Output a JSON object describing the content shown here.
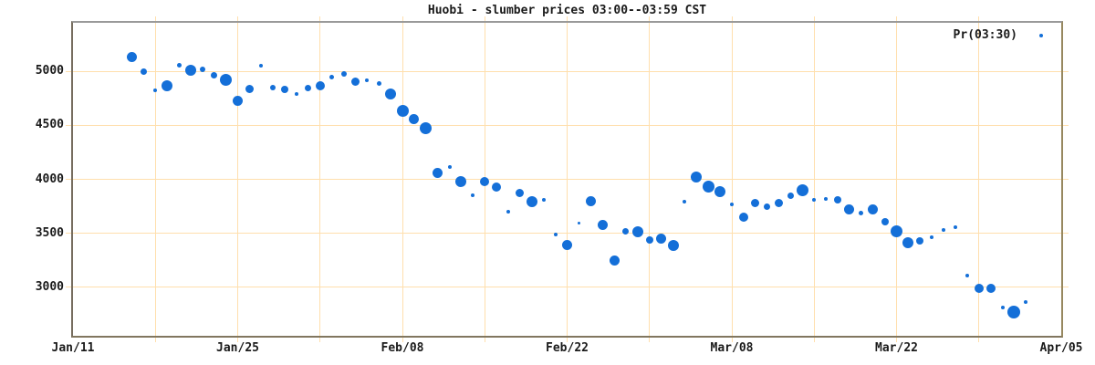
{
  "title": "Huobi - slumber prices 03:00--03:59 CST",
  "colors": {
    "point_blue": "#146fd8",
    "grid_wheat": "#ffdfad",
    "frame_gray": "#9a9a9a",
    "frame_tan": "#8a7d63",
    "text": "#1a1a1a",
    "background": "#ffffff"
  },
  "chart_data": {
    "type": "scatter",
    "title": "Huobi - slumber prices 03:00--03:59 CST",
    "series_name": "Pr(03:30)",
    "legend_position": "top-right",
    "grid": true,
    "x_axis": {
      "total_days": 84,
      "minor_tick_interval_days": 7,
      "major_ticks": [
        {
          "day": 0,
          "label": "Jan/11"
        },
        {
          "day": 14,
          "label": "Jan/25"
        },
        {
          "day": 28,
          "label": "Feb/08"
        },
        {
          "day": 42,
          "label": "Feb/22"
        },
        {
          "day": 56,
          "label": "Mar/08"
        },
        {
          "day": 70,
          "label": "Mar/22"
        },
        {
          "day": 84,
          "label": "Apr/05"
        }
      ]
    },
    "y_axis": {
      "ticks": [
        3000,
        3500,
        4000,
        4500,
        5000
      ],
      "range": [
        2550,
        5450
      ]
    },
    "point_columns": [
      "date",
      "day_index",
      "price",
      "marker_px"
    ],
    "points": [
      [
        "Jan/16",
        5,
        5135,
        11
      ],
      [
        "Jan/17",
        6,
        4995,
        7
      ],
      [
        "Jan/18",
        7,
        4825,
        4
      ],
      [
        "Jan/19",
        8,
        4870,
        12
      ],
      [
        "Jan/20",
        9,
        5060,
        5
      ],
      [
        "Jan/21",
        10,
        5010,
        12
      ],
      [
        "Jan/22",
        11,
        5015,
        6
      ],
      [
        "Jan/23",
        12,
        4965,
        7
      ],
      [
        "Jan/24",
        13,
        4925,
        13
      ],
      [
        "Jan/25",
        14,
        4730,
        11
      ],
      [
        "Jan/26",
        15,
        4835,
        9
      ],
      [
        "Jan/27",
        16,
        5050,
        4
      ],
      [
        "Jan/28",
        17,
        4850,
        6
      ],
      [
        "Jan/29",
        18,
        4830,
        8
      ],
      [
        "Jan/30",
        19,
        4790,
        4
      ],
      [
        "Jan/31",
        20,
        4845,
        7
      ],
      [
        "Feb/01",
        21,
        4870,
        10
      ],
      [
        "Feb/02",
        22,
        4945,
        5
      ],
      [
        "Feb/03",
        23,
        4975,
        6
      ],
      [
        "Feb/04",
        24,
        4905,
        9
      ],
      [
        "Feb/05",
        25,
        4915,
        4
      ],
      [
        "Feb/06",
        26,
        4890,
        5
      ],
      [
        "Feb/07",
        27,
        4790,
        12
      ],
      [
        "Feb/08",
        28,
        4630,
        13
      ],
      [
        "Feb/09",
        29,
        4555,
        11
      ],
      [
        "Feb/10",
        30,
        4475,
        13
      ],
      [
        "Feb/11",
        31,
        4060,
        11
      ],
      [
        "Feb/12",
        32,
        4110,
        4
      ],
      [
        "Feb/13",
        33,
        3980,
        12
      ],
      [
        "Feb/14",
        34,
        3850,
        4
      ],
      [
        "Feb/15",
        35,
        3980,
        10
      ],
      [
        "Feb/16",
        36,
        3925,
        10
      ],
      [
        "Feb/17",
        37,
        3700,
        4
      ],
      [
        "Feb/18",
        38,
        3870,
        9
      ],
      [
        "Feb/19",
        39,
        3790,
        12
      ],
      [
        "Feb/20",
        40,
        3810,
        4
      ],
      [
        "Feb/21",
        41,
        3490,
        4
      ],
      [
        "Feb/22",
        42,
        3390,
        11
      ],
      [
        "Feb/23",
        43,
        3590,
        3
      ],
      [
        "Feb/24",
        44,
        3795,
        11
      ],
      [
        "Feb/25",
        45,
        3575,
        11
      ],
      [
        "Feb/26",
        46,
        3250,
        11
      ],
      [
        "Feb/27",
        47,
        3515,
        7
      ],
      [
        "Feb/28",
        48,
        3510,
        12
      ],
      [
        "Mar/01",
        49,
        3440,
        8
      ],
      [
        "Mar/02",
        50,
        3450,
        11
      ],
      [
        "Mar/03",
        51,
        3390,
        12
      ],
      [
        "Mar/04",
        52,
        3790,
        4
      ],
      [
        "Mar/05",
        53,
        4020,
        12
      ],
      [
        "Mar/06",
        54,
        3930,
        13
      ],
      [
        "Mar/07",
        55,
        3890,
        12
      ],
      [
        "Mar/08",
        56,
        3770,
        4
      ],
      [
        "Mar/09",
        57,
        3650,
        10
      ],
      [
        "Mar/10",
        58,
        3780,
        9
      ],
      [
        "Mar/11",
        59,
        3750,
        7
      ],
      [
        "Mar/12",
        60,
        3780,
        9
      ],
      [
        "Mar/13",
        61,
        3845,
        7
      ],
      [
        "Mar/14",
        62,
        3895,
        13
      ],
      [
        "Mar/15",
        63,
        3810,
        4
      ],
      [
        "Mar/16",
        64,
        3818,
        4
      ],
      [
        "Mar/17",
        65,
        3812,
        8
      ],
      [
        "Mar/18",
        66,
        3725,
        11
      ],
      [
        "Mar/19",
        67,
        3685,
        5
      ],
      [
        "Mar/20",
        68,
        3725,
        11
      ],
      [
        "Mar/21",
        69,
        3605,
        8
      ],
      [
        "Mar/22",
        70,
        3520,
        13
      ],
      [
        "Mar/23",
        71,
        3415,
        12
      ],
      [
        "Mar/24",
        72,
        3430,
        8
      ],
      [
        "Mar/25",
        73,
        3465,
        4
      ],
      [
        "Mar/26",
        74,
        3530,
        4
      ],
      [
        "Mar/27",
        75,
        3555,
        4
      ],
      [
        "Mar/28",
        76,
        3105,
        4
      ],
      [
        "Mar/29",
        77,
        2990,
        10
      ],
      [
        "Mar/30",
        78,
        2990,
        10
      ],
      [
        "Mar/31",
        79,
        2810,
        4
      ],
      [
        "Apr/01",
        80,
        2770,
        14
      ],
      [
        "Apr/02",
        81,
        2860,
        4
      ]
    ]
  }
}
